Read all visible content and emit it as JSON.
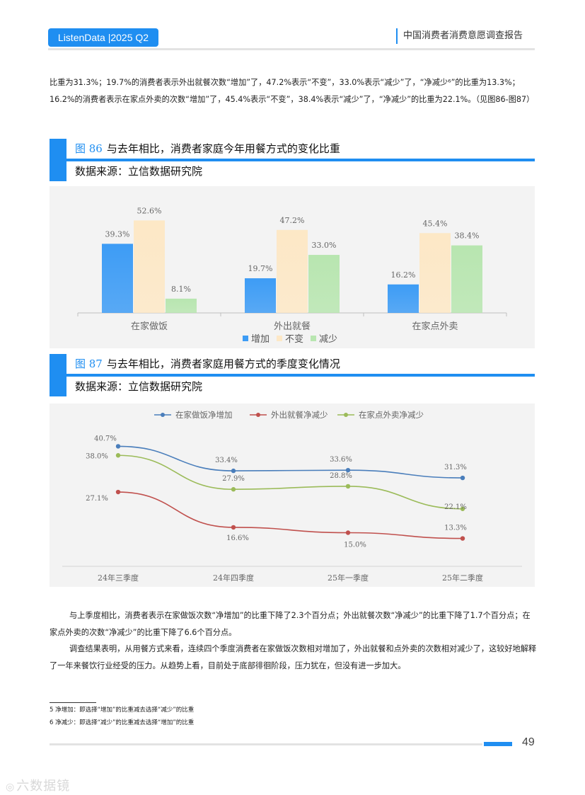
{
  "header": {
    "badge": "ListenData |2025 Q2",
    "report_title": "中国消费者消费意愿调查报告"
  },
  "intro_paragraph": "比重为31.3%；19.7%的消费者表示外出就餐次数“增加”了，47.2%表示“不变”，33.0%表示“减少”了，“净减少⁶”的比重为13.3%；16.2%的消费者表示在家点外卖的次数“增加”了，45.4%表示“不变”，38.4%表示“减少”了，“净减少”的比重为22.1%。（见图86-图87）",
  "figure86": {
    "number": "图 86",
    "title": "与去年相比，消费者家庭今年用餐方式的变化比重",
    "source": "数据来源：立信数据研究院"
  },
  "figure87": {
    "number": "图 87",
    "title": "与去年相比，消费者家庭用餐方式的季度变化情况",
    "source": "数据来源：立信数据研究院"
  },
  "chart_data": [
    {
      "type": "bar",
      "categories": [
        "在家做饭",
        "外出就餐",
        "在家点外卖"
      ],
      "series": [
        {
          "name": "增加",
          "values": [
            39.3,
            19.7,
            16.2
          ],
          "labels": [
            "39.3%",
            "19.7%",
            "16.2%"
          ],
          "color": "#3d9cf5"
        },
        {
          "name": "不变",
          "values": [
            52.6,
            47.2,
            45.4
          ],
          "labels": [
            "52.6%",
            "47.2%",
            "45.4%"
          ],
          "color": "#fde8c6"
        },
        {
          "name": "减少",
          "values": [
            8.1,
            33.0,
            38.4
          ],
          "labels": [
            "8.1%",
            "33.0%",
            "38.4%"
          ],
          "color": "#b8e6b0"
        }
      ],
      "ylim": [
        0,
        60
      ],
      "grid": false,
      "legend_position": "bottom"
    },
    {
      "type": "line",
      "categories": [
        "24年三季度",
        "24年四季度",
        "25年一季度",
        "25年二季度"
      ],
      "series": [
        {
          "name": "在家做饭净增加",
          "values": [
            40.7,
            33.4,
            33.6,
            31.3
          ],
          "labels": [
            "40.7%",
            "33.4%",
            "33.6%",
            "31.3%"
          ],
          "color": "#4a7ebb"
        },
        {
          "name": "外出就餐净减少",
          "values": [
            27.1,
            16.6,
            15.0,
            13.3
          ],
          "labels": [
            "27.1%",
            "16.6%",
            "15.0%",
            "13.3%"
          ],
          "color": "#c0504d"
        },
        {
          "name": "在家点外卖净减少",
          "values": [
            38.0,
            27.9,
            28.8,
            22.1
          ],
          "labels": [
            "38.0%",
            "27.9%",
            "28.8%",
            "22.1%"
          ],
          "color": "#9bbb59"
        }
      ],
      "ylim": [
        5,
        45
      ],
      "grid": false,
      "legend_position": "top"
    }
  ],
  "paragraph2": "与上季度相比，消费者表示在家做饭次数“净增加”的比重下降了2.3个百分点；外出就餐次数“净减少”的比重下降了1.7个百分点；在家点外卖的次数“净减少”的比重下降了6.6个百分点。",
  "paragraph3": "调查结果表明，从用餐方式来看，连续四个季度消费者在家做饭次数相对增加了，外出就餐和点外卖的次数相对减少了，这较好地解释了一年来餐饮行业经受的压力。从趋势上看，目前处于底部徘徊阶段，压力犹在，但没有进一步加大。",
  "footnotes": [
    "5 净增加：即选择“增加”的比重减去选择“减少”的比重",
    "6 净减少：即选择“减少”的比重减去选择“增加”的比重"
  ],
  "page_number": "49",
  "watermark": "六数据镜"
}
